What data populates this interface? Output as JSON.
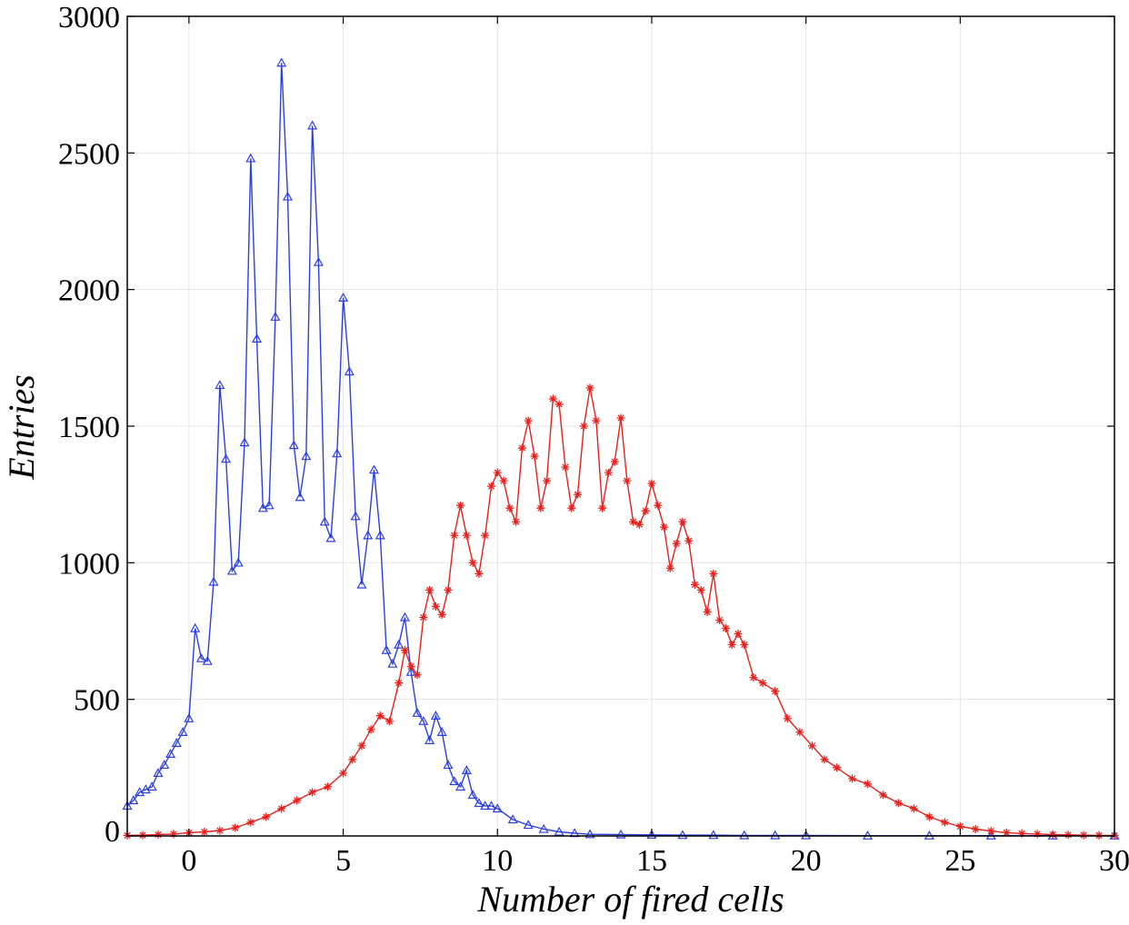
{
  "chart_data": {
    "type": "line",
    "title": "",
    "xlabel": "Number of fired cells",
    "ylabel": "Entries",
    "xlim": [
      -2,
      30
    ],
    "ylim": [
      0,
      3000
    ],
    "x_ticks": [
      0,
      5,
      10,
      15,
      20,
      25,
      30
    ],
    "y_ticks": [
      0,
      500,
      1000,
      1500,
      2000,
      2500,
      3000
    ],
    "grid": true,
    "legend": "none",
    "series": [
      {
        "color": "#2b3fe0",
        "marker": "triangle",
        "x": [
          -2.0,
          -1.8,
          -1.6,
          -1.4,
          -1.2,
          -1.0,
          -0.8,
          -0.6,
          -0.4,
          -0.2,
          0.0,
          0.2,
          0.4,
          0.6,
          0.8,
          1.0,
          1.2,
          1.4,
          1.6,
          1.8,
          2.0,
          2.2,
          2.4,
          2.6,
          2.8,
          3.0,
          3.2,
          3.4,
          3.6,
          3.8,
          4.0,
          4.2,
          4.4,
          4.6,
          4.8,
          5.0,
          5.2,
          5.4,
          5.6,
          5.8,
          6.0,
          6.2,
          6.4,
          6.6,
          6.8,
          7.0,
          7.2,
          7.4,
          7.6,
          7.8,
          8.0,
          8.2,
          8.4,
          8.6,
          8.8,
          9.0,
          9.2,
          9.4,
          9.6,
          9.8,
          10.0,
          10.5,
          11.0,
          11.5,
          12.0,
          12.5,
          13.0,
          14.0,
          15.0,
          16.0,
          17.0,
          18.0,
          19.0,
          20.0,
          22.0,
          24.0,
          26.0,
          28.0,
          30.0
        ],
        "y": [
          110,
          130,
          160,
          170,
          180,
          230,
          260,
          300,
          340,
          380,
          430,
          760,
          650,
          640,
          930,
          1650,
          1380,
          970,
          1000,
          1440,
          2480,
          1820,
          1200,
          1210,
          1900,
          2830,
          2340,
          1430,
          1240,
          1390,
          2600,
          2100,
          1150,
          1090,
          1400,
          1970,
          1700,
          1170,
          920,
          1100,
          1340,
          1100,
          680,
          630,
          700,
          800,
          600,
          450,
          420,
          350,
          440,
          380,
          260,
          200,
          180,
          240,
          150,
          120,
          110,
          110,
          100,
          60,
          40,
          25,
          15,
          10,
          6,
          5,
          4,
          3,
          3,
          2,
          2,
          2,
          1,
          1,
          1,
          1,
          1
        ]
      },
      {
        "color": "#e8201c",
        "marker": "asterisk",
        "x": [
          -2.0,
          -1.5,
          -1.0,
          -0.5,
          0.0,
          0.5,
          1.0,
          1.5,
          2.0,
          2.5,
          3.0,
          3.5,
          4.0,
          4.5,
          5.0,
          5.3,
          5.6,
          5.9,
          6.2,
          6.5,
          6.8,
          7.0,
          7.2,
          7.4,
          7.6,
          7.8,
          8.0,
          8.2,
          8.4,
          8.6,
          8.8,
          9.0,
          9.2,
          9.4,
          9.6,
          9.8,
          10.0,
          10.2,
          10.4,
          10.6,
          10.8,
          11.0,
          11.2,
          11.4,
          11.6,
          11.8,
          12.0,
          12.2,
          12.4,
          12.6,
          12.8,
          13.0,
          13.2,
          13.4,
          13.6,
          13.8,
          14.0,
          14.2,
          14.4,
          14.6,
          14.8,
          15.0,
          15.2,
          15.4,
          15.6,
          15.8,
          16.0,
          16.2,
          16.4,
          16.6,
          16.8,
          17.0,
          17.2,
          17.4,
          17.6,
          17.8,
          18.0,
          18.3,
          18.6,
          19.0,
          19.4,
          19.8,
          20.2,
          20.6,
          21.0,
          21.5,
          22.0,
          22.5,
          23.0,
          23.5,
          24.0,
          24.5,
          25.0,
          25.5,
          26.0,
          26.5,
          27.0,
          27.5,
          28.0,
          28.5,
          29.0,
          29.5,
          30.0
        ],
        "y": [
          2,
          3,
          5,
          7,
          12,
          15,
          20,
          30,
          50,
          70,
          100,
          130,
          160,
          180,
          230,
          280,
          330,
          390,
          440,
          420,
          560,
          680,
          620,
          590,
          800,
          900,
          840,
          810,
          900,
          1100,
          1210,
          1100,
          1000,
          960,
          1100,
          1280,
          1330,
          1300,
          1200,
          1150,
          1420,
          1520,
          1390,
          1200,
          1300,
          1600,
          1580,
          1350,
          1200,
          1250,
          1500,
          1640,
          1520,
          1200,
          1330,
          1370,
          1530,
          1300,
          1150,
          1140,
          1190,
          1290,
          1210,
          1130,
          980,
          1070,
          1150,
          1080,
          920,
          900,
          820,
          960,
          790,
          760,
          700,
          740,
          700,
          580,
          560,
          530,
          430,
          380,
          330,
          280,
          250,
          210,
          190,
          150,
          120,
          100,
          70,
          50,
          35,
          25,
          18,
          12,
          9,
          7,
          5,
          4,
          3,
          2,
          2
        ]
      }
    ]
  }
}
